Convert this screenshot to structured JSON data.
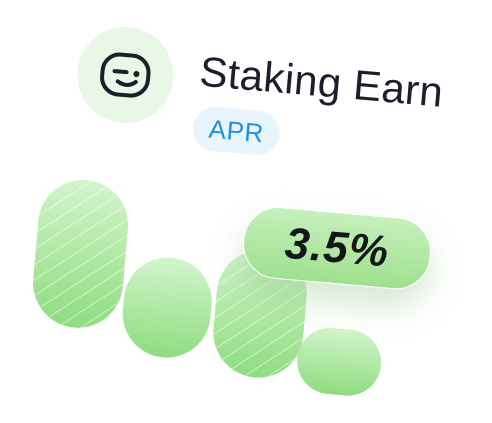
{
  "title": "Staking Earn",
  "badge_label": "APR",
  "apr_value": "3.5%",
  "icons": {
    "avatar": "smile-face-icon"
  },
  "colors": {
    "avatar_bg": "#e9f8e6",
    "badge_bg": "#e8f5fc",
    "badge_text": "#1f8fe0",
    "bar_green_light": "#d2f5cb",
    "bar_green_dark": "#8fdc80",
    "text_dark": "#1c1f2b"
  }
}
